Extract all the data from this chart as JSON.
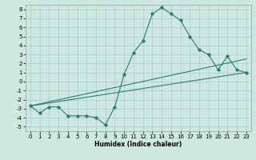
{
  "xlabel": "Humidex (Indice chaleur)",
  "xlim": [
    -0.5,
    23.5
  ],
  "ylim": [
    -5.5,
    8.5
  ],
  "xticks": [
    0,
    1,
    2,
    3,
    4,
    5,
    6,
    7,
    8,
    9,
    10,
    11,
    12,
    13,
    14,
    15,
    16,
    17,
    18,
    19,
    20,
    21,
    22,
    23
  ],
  "yticks": [
    -5,
    -4,
    -3,
    -2,
    -1,
    0,
    1,
    2,
    3,
    4,
    5,
    6,
    7,
    8
  ],
  "bg_color": "#cce8e0",
  "line_color": "#2e7d6e",
  "grid_color": "#aacccc",
  "line1_x": [
    0,
    1,
    2,
    3,
    4,
    5,
    6,
    7,
    8,
    9,
    10,
    11,
    12,
    13,
    14,
    15,
    16,
    17,
    18,
    19,
    20,
    21,
    22,
    23
  ],
  "line1_y": [
    -2.7,
    -3.5,
    -2.8,
    -2.8,
    -3.8,
    -3.8,
    -3.8,
    -4.0,
    -4.8,
    -2.8,
    0.8,
    3.2,
    4.5,
    7.5,
    8.2,
    7.5,
    6.8,
    5.0,
    3.5,
    3.0,
    1.3,
    2.8,
    1.3,
    1.0
  ],
  "line2_x": [
    0,
    23
  ],
  "line2_y": [
    -2.7,
    1.0
  ],
  "line3_x": [
    0,
    23
  ],
  "line3_y": [
    -2.7,
    2.5
  ],
  "xlabel_fontsize": 5.5,
  "tick_fontsize": 5.0
}
